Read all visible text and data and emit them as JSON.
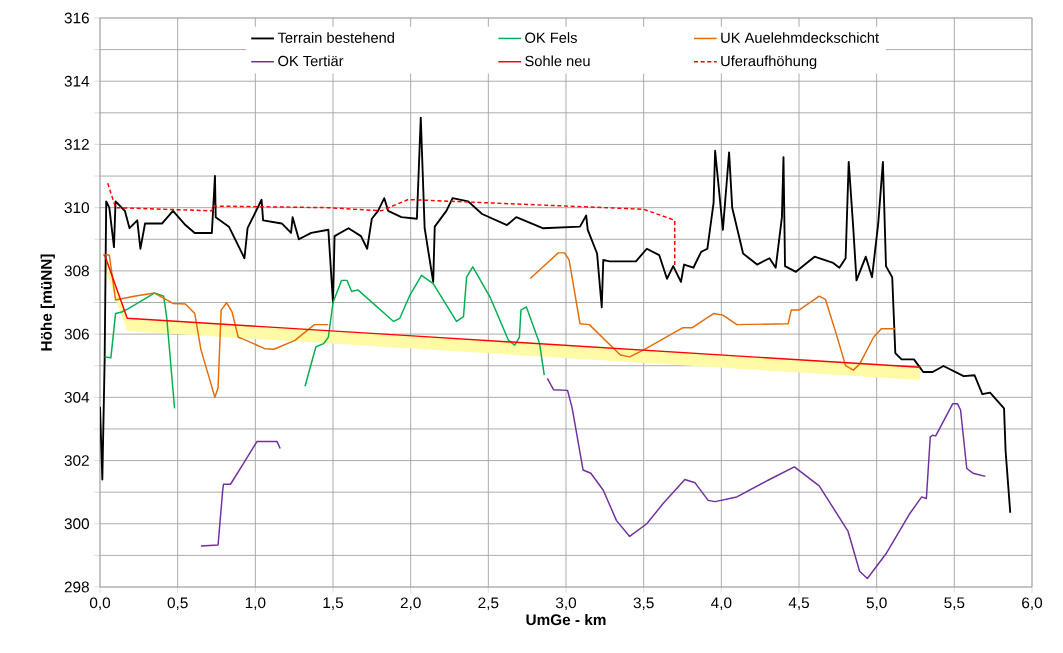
{
  "chart_data": {
    "type": "line",
    "xlabel": "UmGe - km",
    "ylabel": "Höhe [müNN]",
    "xlim": [
      0,
      6
    ],
    "ylim": [
      298,
      316
    ],
    "xticks": [
      {
        "value": 0,
        "label": "0,0"
      },
      {
        "value": 0.5,
        "label": "0,5"
      },
      {
        "value": 1,
        "label": "1,0"
      },
      {
        "value": 1.5,
        "label": "1,5"
      },
      {
        "value": 2,
        "label": "2,0"
      },
      {
        "value": 2.5,
        "label": "2,5"
      },
      {
        "value": 3,
        "label": "3,0"
      },
      {
        "value": 3.5,
        "label": "3,5"
      },
      {
        "value": 4,
        "label": "4,0"
      },
      {
        "value": 4.5,
        "label": "4,5"
      },
      {
        "value": 5,
        "label": "5,0"
      },
      {
        "value": 5.5,
        "label": "5,5"
      },
      {
        "value": 6,
        "label": "6,0"
      }
    ],
    "yticks": [
      298,
      {
        "value": 299,
        "label": null
      },
      300,
      {
        "value": 301,
        "label": null
      },
      302,
      {
        "value": 303,
        "label": null
      },
      304,
      {
        "value": 305,
        "label": null
      },
      306,
      {
        "value": 307,
        "label": null
      },
      308,
      {
        "value": 309,
        "label": null
      },
      310,
      {
        "value": 311,
        "label": null
      },
      312,
      {
        "value": 313,
        "label": null
      },
      314,
      {
        "value": 315,
        "label": null
      },
      316
    ],
    "grid": true,
    "legend": "top",
    "line_style": "solid",
    "series": [
      {
        "name": "Terrain bestehend",
        "color": "#000000",
        "x": [
          0.0,
          0.015,
          0.03,
          0.04,
          0.06,
          0.09,
          0.1,
          0.16,
          0.19,
          0.24,
          0.26,
          0.29,
          0.4,
          0.47,
          0.55,
          0.61,
          0.72,
          0.74,
          0.745,
          0.83,
          0.93,
          0.95,
          1.04,
          1.05,
          1.17,
          1.23,
          1.24,
          1.28,
          1.36,
          1.47,
          1.5,
          1.51,
          1.6,
          1.68,
          1.72,
          1.75,
          1.79,
          1.83,
          1.855,
          1.94,
          2.04,
          2.065,
          2.09,
          2.145,
          2.155,
          2.23,
          2.27,
          2.37,
          2.46,
          2.62,
          2.68,
          2.85,
          3.09,
          3.13,
          3.14,
          3.2,
          3.23,
          3.24,
          3.28,
          3.45,
          3.52,
          3.6,
          3.65,
          3.69,
          3.74,
          3.76,
          3.82,
          3.87,
          3.91,
          3.95,
          3.96,
          4.01,
          4.05,
          4.07,
          4.14,
          4.23,
          4.31,
          4.35,
          4.39,
          4.4,
          4.41,
          4.48,
          4.6,
          4.72,
          4.76,
          4.8,
          4.82,
          4.85,
          4.87,
          4.93,
          4.97,
          5.01,
          5.04,
          5.06,
          5.1,
          5.12,
          5.16,
          5.24,
          5.3,
          5.36,
          5.43,
          5.56,
          5.63,
          5.68,
          5.73,
          5.82,
          5.83,
          5.86
        ],
        "values": [
          303.7,
          301.4,
          305.2,
          310.2,
          310.0,
          308.75,
          310.2,
          309.9,
          309.35,
          309.6,
          308.7,
          309.5,
          309.5,
          309.9,
          309.45,
          309.2,
          309.2,
          311.0,
          309.7,
          309.4,
          308.4,
          309.35,
          310.25,
          309.6,
          309.5,
          309.2,
          309.7,
          309.0,
          309.2,
          309.3,
          307.0,
          309.1,
          309.35,
          309.1,
          308.7,
          309.65,
          309.9,
          310.3,
          309.9,
          309.7,
          309.65,
          312.85,
          309.35,
          307.65,
          309.4,
          309.9,
          310.3,
          310.2,
          309.8,
          309.45,
          309.7,
          309.35,
          309.4,
          309.75,
          309.3,
          308.55,
          306.85,
          308.35,
          308.3,
          308.3,
          308.7,
          308.5,
          307.75,
          308.15,
          307.65,
          308.2,
          308.1,
          308.6,
          308.7,
          310.15,
          311.8,
          309.3,
          311.75,
          310.0,
          308.55,
          308.2,
          308.4,
          308.1,
          309.7,
          311.6,
          308.15,
          307.97,
          308.45,
          308.25,
          308.1,
          308.4,
          311.45,
          309.3,
          307.7,
          308.45,
          307.8,
          309.5,
          311.45,
          308.15,
          307.8,
          305.4,
          305.2,
          305.2,
          304.8,
          304.8,
          304.99,
          304.67,
          304.7,
          304.1,
          304.15,
          303.65,
          302.3,
          300.35
        ]
      },
      {
        "name": "OK Fels",
        "color": "#00b050",
        "x": [
          0.03,
          0.07,
          0.1,
          0.14,
          0.18,
          0.35,
          0.41,
          0.43,
          0.48,
          null,
          1.32,
          1.39,
          1.44,
          1.47,
          1.5,
          1.555,
          1.59,
          1.62,
          1.66,
          1.89,
          1.93,
          1.995,
          2.07,
          2.145,
          2.295,
          2.34,
          2.36,
          2.4,
          2.51,
          2.63,
          2.67,
          2.7,
          2.71,
          2.745,
          2.83,
          2.86
        ],
        "values": [
          305.28,
          305.25,
          306.65,
          306.7,
          306.8,
          307.3,
          307.2,
          306.5,
          303.65,
          null,
          304.35,
          305.6,
          305.7,
          305.9,
          307.0,
          307.7,
          307.7,
          307.35,
          307.4,
          306.4,
          306.5,
          307.23,
          307.86,
          307.6,
          306.4,
          306.55,
          307.8,
          308.13,
          307.18,
          305.8,
          305.65,
          305.9,
          306.76,
          306.86,
          305.7,
          304.7
        ]
      },
      {
        "name": "UK Auelehmdeckschicht",
        "color": "#e46c0a",
        "x": [
          0.02,
          0.06,
          0.1,
          0.22,
          0.35,
          0.47,
          0.55,
          0.61,
          0.65,
          0.74,
          0.76,
          0.78,
          0.815,
          0.85,
          0.89,
          0.92,
          1.06,
          1.12,
          1.255,
          1.38,
          1.47,
          null,
          2.77,
          2.95,
          2.99,
          3.02,
          3.09,
          3.15,
          3.35,
          3.41,
          3.5,
          3.75,
          3.81,
          3.95,
          4.01,
          4.1,
          4.43,
          4.45,
          4.5,
          4.63,
          4.67,
          4.74,
          4.8,
          4.85,
          4.89,
          4.98,
          5.03,
          5.12
        ],
        "values": [
          308.5,
          308.5,
          307.08,
          307.2,
          307.3,
          306.97,
          306.95,
          306.65,
          305.5,
          304.0,
          304.3,
          306.76,
          306.99,
          306.7,
          305.9,
          305.85,
          305.54,
          305.52,
          305.8,
          306.3,
          306.3,
          null,
          307.76,
          308.57,
          308.57,
          308.35,
          306.33,
          306.3,
          305.34,
          305.28,
          305.5,
          306.2,
          306.2,
          306.65,
          306.6,
          306.3,
          306.33,
          306.76,
          306.76,
          307.2,
          307.1,
          306.0,
          305.0,
          304.86,
          305.05,
          305.9,
          306.17,
          306.17
        ]
      },
      {
        "name": "OK Tertiär",
        "color": "#7030a0",
        "x": [
          0.65,
          0.76,
          0.79,
          0.795,
          0.84,
          0.91,
          1.01,
          1.14,
          1.16,
          null,
          2.88,
          2.92,
          3.01,
          3.04,
          3.11,
          3.16,
          3.24,
          3.325,
          3.41,
          3.52,
          3.625,
          3.765,
          3.83,
          3.915,
          3.96,
          4.1,
          4.31,
          4.47,
          4.63,
          4.815,
          4.89,
          4.94,
          5.06,
          5.21,
          5.29,
          5.32,
          5.345,
          5.36,
          5.38,
          5.49,
          5.52,
          5.54,
          5.58,
          5.62,
          5.7
        ],
        "values": [
          299.3,
          299.33,
          301.06,
          301.25,
          301.25,
          301.8,
          302.6,
          302.6,
          302.38,
          null,
          304.6,
          304.24,
          304.22,
          303.65,
          301.7,
          301.6,
          301.06,
          300.1,
          299.6,
          300.0,
          300.64,
          301.4,
          301.3,
          300.74,
          300.7,
          300.85,
          301.4,
          301.8,
          301.2,
          299.77,
          298.5,
          298.27,
          299.05,
          300.3,
          300.85,
          300.8,
          302.75,
          302.8,
          302.78,
          303.8,
          303.8,
          303.6,
          301.75,
          301.6,
          301.5
        ]
      },
      {
        "name": "Sohle neu",
        "color": "#ff0000",
        "x": [
          0.03,
          0.175,
          2.09,
          5.28
        ],
        "values": [
          308.5,
          306.5,
          305.92,
          304.95
        ],
        "upper": [
          308.5,
          306.5,
          305.92,
          304.95
        ],
        "lower": [
          308.1,
          306.1,
          305.52,
          304.55
        ]
      },
      {
        "name": "Uferaufhöhung",
        "color": "#ff0000",
        "line_style": "dashed",
        "x": [
          0.05,
          0.1,
          0.72,
          0.73,
          1.47,
          1.81,
          1.98,
          2.02,
          3.5,
          3.7,
          3.7
        ],
        "values": [
          310.77,
          310.0,
          309.9,
          310.05,
          310.0,
          309.9,
          310.25,
          310.25,
          309.95,
          309.6,
          308.1
        ]
      }
    ]
  }
}
